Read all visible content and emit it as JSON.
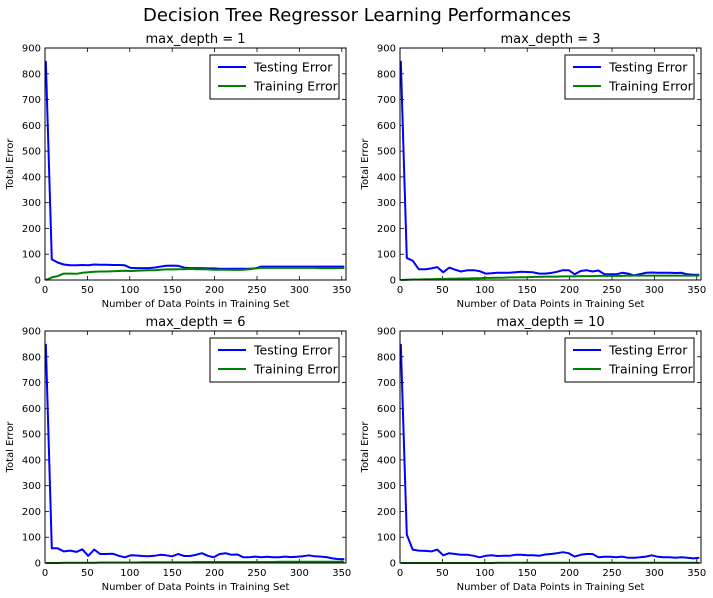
{
  "figure_title": "Decision Tree Regressor Learning Performances",
  "colors": {
    "testing": "#0000ff",
    "training": "#008000"
  },
  "chart_data": [
    {
      "type": "line",
      "title": "max_depth = 1",
      "xlabel": "Number of Data Points in Training Set",
      "ylabel": "Total Error",
      "xlim": [
        0,
        355
      ],
      "ylim": [
        0,
        900
      ],
      "xticks": [
        0,
        50,
        100,
        150,
        200,
        250,
        300,
        350
      ],
      "yticks": [
        0,
        100,
        200,
        300,
        400,
        500,
        600,
        700,
        800,
        900
      ],
      "legend_position": "top-right",
      "series": [
        {
          "name": "Testing Error",
          "color": "#0000ff",
          "x": [
            1,
            8,
            15,
            22,
            30,
            37,
            44,
            51,
            58,
            65,
            72,
            80,
            87,
            94,
            101,
            108,
            115,
            122,
            129,
            136,
            143,
            150,
            157,
            164,
            171,
            178,
            185,
            192,
            199,
            206,
            213,
            220,
            227,
            234,
            241,
            248,
            255,
            262,
            269,
            276,
            283,
            290,
            297,
            304,
            311,
            318,
            325,
            332,
            339,
            346,
            353
          ],
          "y": [
            850,
            80,
            68,
            60,
            57,
            57,
            58,
            57,
            60,
            59,
            59,
            58,
            58,
            57,
            47,
            46,
            46,
            46,
            48,
            52,
            55,
            56,
            55,
            48,
            46,
            46,
            46,
            45,
            45,
            44,
            44,
            44,
            44,
            44,
            44,
            45,
            52,
            52,
            52,
            52,
            52,
            52,
            52,
            52,
            52,
            52,
            52,
            52,
            52,
            52,
            52
          ]
        },
        {
          "name": "Training Error",
          "color": "#008000",
          "x": [
            1,
            8,
            15,
            22,
            30,
            37,
            44,
            51,
            58,
            65,
            72,
            80,
            87,
            94,
            101,
            108,
            115,
            122,
            129,
            136,
            143,
            150,
            157,
            164,
            171,
            178,
            185,
            192,
            199,
            206,
            213,
            220,
            227,
            234,
            241,
            248,
            255,
            262,
            269,
            276,
            283,
            290,
            297,
            304,
            311,
            318,
            325,
            332,
            339,
            346,
            353
          ],
          "y": [
            0,
            10,
            15,
            25,
            25,
            24,
            28,
            30,
            32,
            33,
            33,
            34,
            35,
            36,
            35,
            36,
            37,
            38,
            38,
            40,
            41,
            41,
            42,
            42,
            43,
            42,
            42,
            41,
            40,
            40,
            40,
            39,
            39,
            40,
            42,
            45,
            47,
            47,
            47,
            47,
            47,
            47,
            47,
            47,
            47,
            47,
            46,
            46,
            46,
            46,
            46
          ]
        }
      ]
    },
    {
      "type": "line",
      "title": "max_depth = 3",
      "xlabel": "Number of Data Points in Training Set",
      "ylabel": "Total Error",
      "xlim": [
        0,
        355
      ],
      "ylim": [
        0,
        900
      ],
      "xticks": [
        0,
        50,
        100,
        150,
        200,
        250,
        300,
        350
      ],
      "yticks": [
        0,
        100,
        200,
        300,
        400,
        500,
        600,
        700,
        800,
        900
      ],
      "legend_position": "top-right",
      "series": [
        {
          "name": "Testing Error",
          "color": "#0000ff",
          "x": [
            1,
            8,
            15,
            22,
            30,
            37,
            44,
            51,
            58,
            65,
            72,
            80,
            87,
            94,
            101,
            108,
            115,
            122,
            129,
            136,
            143,
            150,
            157,
            164,
            171,
            178,
            185,
            192,
            199,
            206,
            213,
            220,
            227,
            234,
            241,
            248,
            255,
            262,
            269,
            276,
            283,
            290,
            297,
            304,
            311,
            318,
            325,
            332,
            339,
            346,
            353
          ],
          "y": [
            850,
            85,
            75,
            42,
            42,
            45,
            50,
            30,
            48,
            40,
            33,
            38,
            38,
            34,
            25,
            26,
            28,
            28,
            28,
            30,
            32,
            31,
            30,
            25,
            25,
            27,
            32,
            38,
            38,
            22,
            35,
            38,
            33,
            37,
            23,
            22,
            22,
            28,
            25,
            18,
            23,
            28,
            29,
            28,
            28,
            28,
            27,
            28,
            22,
            20,
            20
          ]
        },
        {
          "name": "Training Error",
          "color": "#008000",
          "x": [
            1,
            8,
            15,
            22,
            30,
            37,
            44,
            51,
            58,
            65,
            72,
            80,
            87,
            94,
            101,
            108,
            115,
            122,
            129,
            136,
            143,
            150,
            157,
            164,
            171,
            178,
            185,
            192,
            199,
            206,
            213,
            220,
            227,
            234,
            241,
            248,
            255,
            262,
            269,
            276,
            283,
            290,
            297,
            304,
            311,
            318,
            325,
            332,
            339,
            346,
            353
          ],
          "y": [
            0,
            1,
            2,
            2,
            3,
            3,
            4,
            4,
            5,
            5,
            6,
            6,
            7,
            7,
            8,
            8,
            9,
            9,
            10,
            10,
            11,
            11,
            12,
            12,
            13,
            13,
            13,
            14,
            14,
            14,
            15,
            15,
            15,
            16,
            16,
            16,
            16,
            16,
            17,
            17,
            17,
            17,
            17,
            17,
            17,
            17,
            17,
            17,
            17,
            17,
            17
          ]
        }
      ]
    },
    {
      "type": "line",
      "title": "max_depth = 6",
      "xlabel": "Number of Data Points in Training Set",
      "ylabel": "Total Error",
      "xlim": [
        0,
        355
      ],
      "ylim": [
        0,
        900
      ],
      "xticks": [
        0,
        50,
        100,
        150,
        200,
        250,
        300,
        350
      ],
      "yticks": [
        0,
        100,
        200,
        300,
        400,
        500,
        600,
        700,
        800,
        900
      ],
      "legend_position": "top-right",
      "series": [
        {
          "name": "Testing Error",
          "color": "#0000ff",
          "x": [
            1,
            8,
            15,
            22,
            30,
            37,
            44,
            51,
            58,
            65,
            72,
            80,
            87,
            94,
            101,
            108,
            115,
            122,
            129,
            136,
            143,
            150,
            157,
            164,
            171,
            178,
            185,
            192,
            199,
            206,
            213,
            220,
            227,
            234,
            241,
            248,
            255,
            262,
            269,
            276,
            283,
            290,
            297,
            304,
            311,
            318,
            325,
            332,
            339,
            346,
            353
          ],
          "y": [
            850,
            57,
            57,
            45,
            48,
            43,
            53,
            28,
            52,
            35,
            35,
            36,
            28,
            22,
            30,
            29,
            27,
            26,
            28,
            32,
            30,
            26,
            35,
            27,
            27,
            32,
            38,
            28,
            22,
            35,
            38,
            32,
            33,
            22,
            22,
            25,
            22,
            24,
            22,
            22,
            25,
            23,
            24,
            26,
            30,
            26,
            25,
            23,
            18,
            15,
            15
          ]
        },
        {
          "name": "Training Error",
          "color": "#008000",
          "x": [
            1,
            8,
            15,
            22,
            30,
            37,
            44,
            51,
            58,
            65,
            72,
            80,
            87,
            94,
            101,
            108,
            115,
            122,
            129,
            136,
            143,
            150,
            157,
            164,
            171,
            178,
            185,
            192,
            199,
            206,
            213,
            220,
            227,
            234,
            241,
            248,
            255,
            262,
            269,
            276,
            283,
            290,
            297,
            304,
            311,
            318,
            325,
            332,
            339,
            346,
            353
          ],
          "y": [
            0,
            0,
            0,
            1,
            1,
            1,
            1,
            1,
            1,
            2,
            2,
            2,
            2,
            2,
            2,
            2,
            3,
            3,
            3,
            3,
            3,
            3,
            3,
            3,
            3,
            4,
            4,
            4,
            4,
            4,
            4,
            4,
            4,
            4,
            4,
            4,
            4,
            4,
            4,
            5,
            5,
            5,
            5,
            5,
            5,
            5,
            5,
            5,
            5,
            5,
            5
          ]
        }
      ]
    },
    {
      "type": "line",
      "title": "max_depth = 10",
      "xlabel": "Number of Data Points in Training Set",
      "ylabel": "Total Error",
      "xlim": [
        0,
        355
      ],
      "ylim": [
        0,
        900
      ],
      "xticks": [
        0,
        50,
        100,
        150,
        200,
        250,
        300,
        350
      ],
      "yticks": [
        0,
        100,
        200,
        300,
        400,
        500,
        600,
        700,
        800,
        900
      ],
      "legend_position": "top-right",
      "series": [
        {
          "name": "Testing Error",
          "color": "#0000ff",
          "x": [
            1,
            8,
            15,
            22,
            30,
            37,
            44,
            51,
            58,
            65,
            72,
            80,
            87,
            94,
            101,
            108,
            115,
            122,
            129,
            136,
            143,
            150,
            157,
            164,
            171,
            178,
            185,
            192,
            199,
            206,
            213,
            220,
            227,
            234,
            241,
            248,
            255,
            262,
            269,
            276,
            283,
            290,
            297,
            304,
            311,
            318,
            325,
            332,
            339,
            346,
            353
          ],
          "y": [
            850,
            110,
            52,
            48,
            47,
            45,
            52,
            30,
            38,
            35,
            32,
            32,
            28,
            22,
            28,
            30,
            27,
            28,
            28,
            32,
            32,
            30,
            30,
            28,
            33,
            35,
            38,
            42,
            38,
            25,
            32,
            35,
            35,
            22,
            24,
            24,
            22,
            25,
            20,
            20,
            22,
            25,
            30,
            24,
            22,
            22,
            20,
            22,
            20,
            18,
            20
          ]
        },
        {
          "name": "Training Error",
          "color": "#008000",
          "x": [
            1,
            8,
            15,
            22,
            30,
            37,
            44,
            51,
            58,
            65,
            72,
            80,
            87,
            94,
            101,
            108,
            115,
            122,
            129,
            136,
            143,
            150,
            157,
            164,
            171,
            178,
            185,
            192,
            199,
            206,
            213,
            220,
            227,
            234,
            241,
            248,
            255,
            262,
            269,
            276,
            283,
            290,
            297,
            304,
            311,
            318,
            325,
            332,
            339,
            346,
            353
          ],
          "y": [
            0,
            0,
            0,
            0,
            0,
            0,
            0,
            0,
            0,
            0,
            0,
            0,
            0,
            0,
            0,
            0,
            1,
            1,
            1,
            1,
            1,
            1,
            1,
            1,
            1,
            1,
            1,
            1,
            1,
            1,
            1,
            1,
            1,
            1,
            1,
            1,
            1,
            1,
            1,
            1,
            1,
            1,
            1,
            1,
            1,
            1,
            1,
            1,
            1,
            1,
            1
          ]
        }
      ]
    }
  ]
}
